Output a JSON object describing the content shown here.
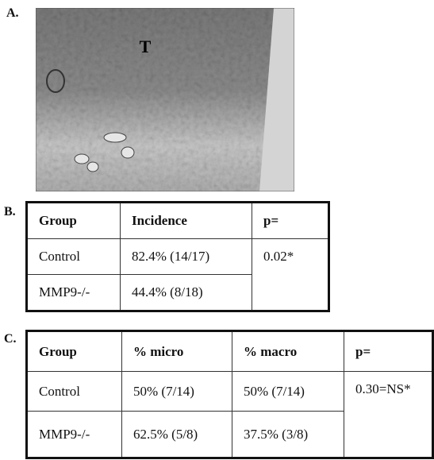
{
  "panel_a": {
    "label": "A.",
    "image_label": "T"
  },
  "panel_b": {
    "label": "B.",
    "table": {
      "header": [
        "Group",
        "Incidence",
        "p="
      ],
      "rows": [
        [
          "Control",
          "82.4% (14/17)",
          "0.02*"
        ],
        [
          "MMP9-/-",
          "44.4% (8/18)"
        ]
      ]
    }
  },
  "panel_c": {
    "label": "C.",
    "table": {
      "header": [
        "Group",
        "% micro",
        "% macro",
        "p="
      ],
      "rows": [
        [
          "Control",
          "50% (7/14)",
          "50% (7/14)",
          "0.30=NS*"
        ],
        [
          "MMP9-/-",
          "62.5% (5/8)",
          "37.5% (3/8)"
        ]
      ]
    }
  }
}
